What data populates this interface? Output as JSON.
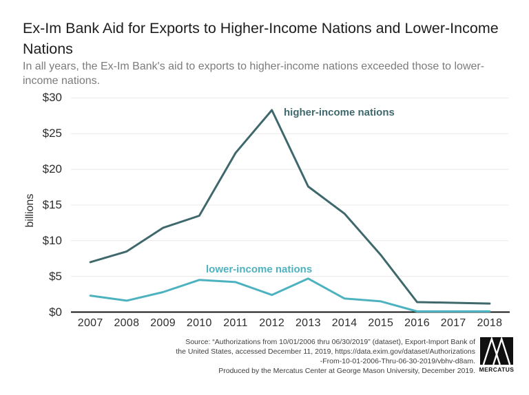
{
  "chart_data": {
    "type": "line",
    "title": "Ex-Im Bank Aid for Exports to Higher-Income Nations and Lower-Income Nations",
    "subtitle": "In all years, the Ex-Im Bank's aid to exports to higher-income nations exceeded those to lower-income nations.",
    "ylabel": "billions",
    "xlabel": "",
    "x": [
      "2007",
      "2008",
      "2009",
      "2010",
      "2011",
      "2012",
      "2013",
      "2014",
      "2015",
      "2016",
      "2017",
      "2018"
    ],
    "series": [
      {
        "name": "higher-income nations",
        "color": "#3f686c",
        "values": [
          7.0,
          8.5,
          11.8,
          13.5,
          22.3,
          28.3,
          17.6,
          13.8,
          8.0,
          1.4,
          1.3,
          1.2
        ]
      },
      {
        "name": "lower-income nations",
        "color": "#4db2bf",
        "values": [
          2.3,
          1.6,
          2.8,
          4.5,
          4.2,
          2.4,
          4.7,
          1.9,
          1.5,
          0.1,
          0.1,
          0.1
        ]
      }
    ],
    "ylim": [
      0,
      30
    ],
    "yticks": [
      {
        "label": "$0",
        "value": 0
      },
      {
        "label": "$5",
        "value": 5
      },
      {
        "label": "$10",
        "value": 10
      },
      {
        "label": "$15",
        "value": 15
      },
      {
        "label": "$20",
        "value": 20
      },
      {
        "label": "$25",
        "value": 25
      },
      {
        "label": "$30",
        "value": 30
      }
    ],
    "grid": "horizontal",
    "legend": "inline-labels",
    "axis_color": "#161616",
    "grid_color": "#e8e8e8"
  },
  "footer": {
    "source_lines": [
      "Source: “Authorizations from 10/01/2006 thru 06/30/2019” (dataset), Export-Import Bank of",
      "the United States, accessed December 11, 2019, https://data.exim.gov/dataset/Authorizations",
      "-From-10-01-2006-Thru-06-30-2019/vbhv-d8am.",
      "Produced by the Mercatus Center at George Mason University, December 2019."
    ],
    "logo_text": "MERCATUS"
  }
}
